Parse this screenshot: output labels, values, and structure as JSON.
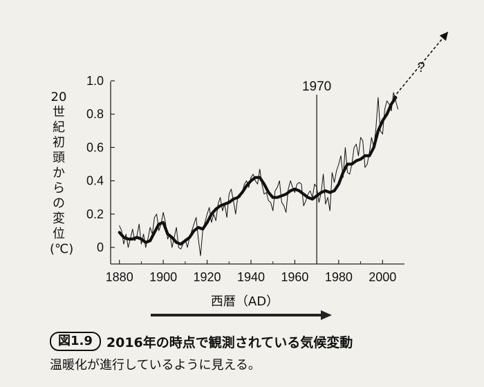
{
  "chart_data": {
    "type": "line",
    "title": "",
    "xlabel": "西暦（AD）",
    "ylabel": "20世紀初頭からの変位（℃）",
    "ylabel_chars": [
      "20",
      "世",
      "紀",
      "初",
      "頭",
      "か",
      "ら",
      "の",
      "変",
      "位",
      "(℃)"
    ],
    "xlim": [
      1876,
      2010
    ],
    "ylim": [
      -0.1,
      1.0
    ],
    "xticks": [
      1880,
      1900,
      1920,
      1940,
      1960,
      1980,
      2000
    ],
    "yticks": [
      0,
      0.2,
      0.4,
      0.6,
      0.8,
      1.0
    ],
    "ytick_labels": [
      "0",
      "0.2",
      "0.4",
      "0.6",
      "0.8",
      "1.0"
    ],
    "reference_line": {
      "x": 1970,
      "label": "1970"
    },
    "series": [
      {
        "name": "annual",
        "style": "thin",
        "x": [
          1880,
          1881,
          1882,
          1883,
          1884,
          1885,
          1886,
          1887,
          1888,
          1889,
          1890,
          1891,
          1892,
          1893,
          1894,
          1895,
          1896,
          1897,
          1898,
          1899,
          1900,
          1901,
          1902,
          1903,
          1904,
          1905,
          1906,
          1907,
          1908,
          1909,
          1910,
          1911,
          1912,
          1913,
          1914,
          1915,
          1916,
          1917,
          1918,
          1919,
          1920,
          1921,
          1922,
          1923,
          1924,
          1925,
          1926,
          1927,
          1928,
          1929,
          1930,
          1931,
          1932,
          1933,
          1934,
          1935,
          1936,
          1937,
          1938,
          1939,
          1940,
          1941,
          1942,
          1943,
          1944,
          1945,
          1946,
          1947,
          1948,
          1949,
          1950,
          1951,
          1952,
          1953,
          1954,
          1955,
          1956,
          1957,
          1958,
          1959,
          1960,
          1961,
          1962,
          1963,
          1964,
          1965,
          1966,
          1967,
          1968,
          1969,
          1970,
          1971,
          1972,
          1973,
          1974,
          1975,
          1976,
          1977,
          1978,
          1979,
          1980,
          1981,
          1982,
          1983,
          1984,
          1985,
          1986,
          1987,
          1988,
          1989,
          1990,
          1991,
          1992,
          1993,
          1994,
          1995,
          1996,
          1997,
          1998,
          1999,
          2000,
          2001,
          2002,
          2003,
          2004,
          2005,
          2006,
          2007
        ],
        "values": [
          0.13,
          0.1,
          0.02,
          0.08,
          0.0,
          0.05,
          0.11,
          0.04,
          0.07,
          0.14,
          0.02,
          0.08,
          0.0,
          0.05,
          0.12,
          0.08,
          0.18,
          0.2,
          0.1,
          0.14,
          0.21,
          0.15,
          0.05,
          0.08,
          0.0,
          0.06,
          0.12,
          0.0,
          -0.01,
          0.02,
          0.05,
          0.0,
          0.06,
          0.1,
          0.14,
          0.18,
          0.05,
          -0.05,
          0.1,
          0.15,
          0.2,
          0.24,
          0.15,
          0.2,
          0.16,
          0.26,
          0.3,
          0.22,
          0.26,
          0.18,
          0.32,
          0.35,
          0.28,
          0.2,
          0.31,
          0.3,
          0.33,
          0.38,
          0.4,
          0.36,
          0.42,
          0.44,
          0.4,
          0.38,
          0.47,
          0.38,
          0.32,
          0.33,
          0.28,
          0.27,
          0.22,
          0.34,
          0.36,
          0.4,
          0.27,
          0.25,
          0.21,
          0.35,
          0.4,
          0.36,
          0.33,
          0.38,
          0.39,
          0.38,
          0.25,
          0.28,
          0.32,
          0.34,
          0.3,
          0.38,
          0.36,
          0.27,
          0.33,
          0.44,
          0.26,
          0.3,
          0.22,
          0.45,
          0.39,
          0.46,
          0.5,
          0.55,
          0.42,
          0.6,
          0.45,
          0.44,
          0.5,
          0.6,
          0.62,
          0.55,
          0.66,
          0.64,
          0.48,
          0.5,
          0.57,
          0.66,
          0.6,
          0.72,
          0.9,
          0.7,
          0.68,
          0.83,
          0.88,
          0.86,
          0.82,
          0.93,
          0.88,
          0.83
        ]
      },
      {
        "name": "smoothed",
        "style": "thick",
        "x": [
          1880,
          1882,
          1884,
          1886,
          1888,
          1890,
          1892,
          1894,
          1896,
          1898,
          1900,
          1902,
          1904,
          1906,
          1908,
          1910,
          1912,
          1914,
          1916,
          1918,
          1920,
          1922,
          1924,
          1926,
          1928,
          1930,
          1932,
          1934,
          1936,
          1938,
          1940,
          1942,
          1944,
          1946,
          1948,
          1950,
          1952,
          1954,
          1956,
          1958,
          1960,
          1962,
          1964,
          1966,
          1968,
          1970,
          1972,
          1974,
          1976,
          1978,
          1980,
          1982,
          1984,
          1986,
          1988,
          1990,
          1992,
          1994,
          1996,
          1998,
          2000,
          2002,
          2004,
          2006
        ],
        "values": [
          0.09,
          0.06,
          0.05,
          0.05,
          0.06,
          0.05,
          0.03,
          0.04,
          0.09,
          0.14,
          0.15,
          0.08,
          0.06,
          0.03,
          0.02,
          0.04,
          0.06,
          0.1,
          0.12,
          0.11,
          0.15,
          0.2,
          0.23,
          0.25,
          0.26,
          0.27,
          0.29,
          0.3,
          0.33,
          0.37,
          0.4,
          0.42,
          0.42,
          0.38,
          0.33,
          0.3,
          0.3,
          0.31,
          0.32,
          0.34,
          0.35,
          0.34,
          0.32,
          0.3,
          0.29,
          0.31,
          0.33,
          0.34,
          0.33,
          0.34,
          0.38,
          0.45,
          0.5,
          0.5,
          0.52,
          0.53,
          0.55,
          0.55,
          0.6,
          0.7,
          0.76,
          0.8,
          0.86,
          0.9
        ]
      },
      {
        "name": "projection",
        "style": "dashed-arrow",
        "x": [
          2005,
          2035
        ],
        "values": [
          0.9,
          1.3
        ],
        "label": "?"
      }
    ],
    "annotation_arrow": {
      "direction": "right"
    }
  },
  "caption": {
    "figure_badge": "図1.9",
    "title": "2016年の時点で観測されている気候変動",
    "subtitle": "温暖化が進行しているように見える。"
  }
}
